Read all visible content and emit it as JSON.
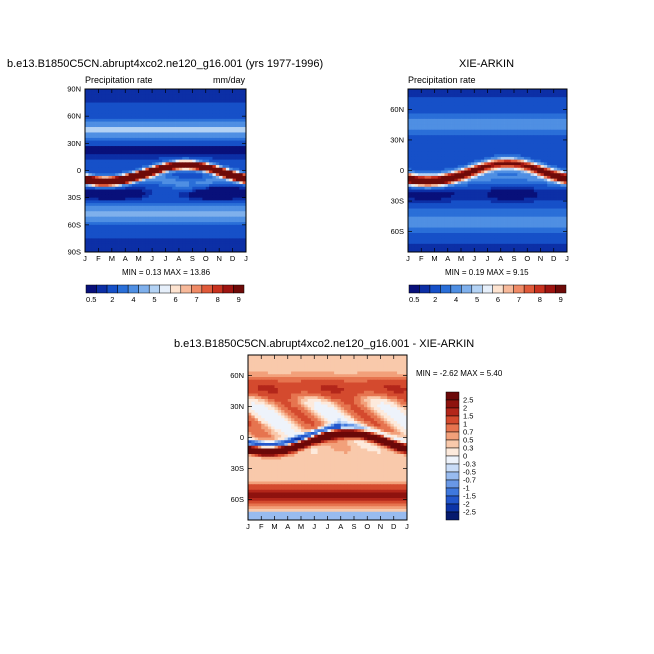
{
  "panels": [
    {
      "title": "b.e13.B1850C5CN.abrupt4xco2.ne120_g16.001 (yrs 1977-1996)",
      "left_label": "Precipitation rate",
      "right_label": "mm/day",
      "stats": "MIN =  0.13 MAX =  13.86"
    },
    {
      "title": "XIE-ARKIN",
      "left_label": "Precipitation rate",
      "right_label": "",
      "stats": "MIN =  0.19 MAX =  9.15"
    },
    {
      "title": "b.e13.B1850C5CN.abrupt4xco2.ne120_g16.001 - XIE-ARKIN",
      "left_label": "",
      "right_label": "",
      "stats": "MIN = -2.62 MAX =  5.40"
    }
  ],
  "colors": {
    "precip_scale": [
      "#08107a",
      "#0c2fa6",
      "#1650c8",
      "#2a6fd8",
      "#4f8fe3",
      "#7fb0ec",
      "#b3d2f4",
      "#e6effa",
      "#fde3d0",
      "#f7b99a",
      "#ef8a66",
      "#e05a3a",
      "#c8321f",
      "#9e1410",
      "#6e0a08"
    ],
    "diff_scale": [
      "#061a6e",
      "#0c34a8",
      "#2256cc",
      "#3f78de",
      "#6998e6",
      "#98bbef",
      "#c9dcf7",
      "#eef3fb",
      "#fdeadc",
      "#f9c9ab",
      "#f2a07a",
      "#e6744f",
      "#d44a2e",
      "#b3261a",
      "#8e120e",
      "#6b0808"
    ]
  },
  "chart_data": [
    {
      "type": "heatmap",
      "title": "b.e13.B1850C5CN.abrupt4xco2.ne120_g16.001 (yrs 1977-1996)",
      "variable": "Precipitation rate",
      "units": "mm/day",
      "x_ticks": [
        "J",
        "F",
        "M",
        "A",
        "M",
        "J",
        "J",
        "A",
        "S",
        "O",
        "N",
        "D",
        "J"
      ],
      "y_ticks": [
        "90N",
        "60N",
        "30N",
        "0",
        "30S",
        "60S",
        "90S"
      ],
      "ylim": [
        -90,
        90
      ],
      "min": 0.13,
      "max": 13.86,
      "colorbar_labels": [
        "0.5",
        "2",
        "4",
        "5",
        "6",
        "7",
        "8",
        "9"
      ]
    },
    {
      "type": "heatmap",
      "title": "XIE-ARKIN",
      "variable": "Precipitation rate",
      "x_ticks": [
        "J",
        "F",
        "M",
        "A",
        "M",
        "J",
        "J",
        "A",
        "S",
        "O",
        "N",
        "D",
        "J"
      ],
      "y_ticks": [
        "60N",
        "30N",
        "0",
        "30S",
        "60S"
      ],
      "ylim": [
        -80,
        80
      ],
      "min": 0.19,
      "max": 9.15,
      "colorbar_labels": [
        "0.5",
        "2",
        "4",
        "5",
        "6",
        "7",
        "8",
        "9"
      ]
    },
    {
      "type": "heatmap",
      "title": "b.e13.B1850C5CN.abrupt4xco2.ne120_g16.001 - XIE-ARKIN",
      "x_ticks": [
        "J",
        "F",
        "M",
        "A",
        "M",
        "J",
        "J",
        "A",
        "S",
        "O",
        "N",
        "D",
        "J"
      ],
      "y_ticks": [
        "60N",
        "30N",
        "0",
        "30S",
        "60S"
      ],
      "ylim": [
        -80,
        80
      ],
      "min": -2.62,
      "max": 5.4,
      "colorbar_labels": [
        "2.5",
        "2",
        "1.5",
        "1",
        "0.7",
        "0.5",
        "0.3",
        "0",
        "-0.3",
        "-0.5",
        "-0.7",
        "-1",
        "-1.5",
        "-2",
        "-2.5"
      ]
    }
  ]
}
